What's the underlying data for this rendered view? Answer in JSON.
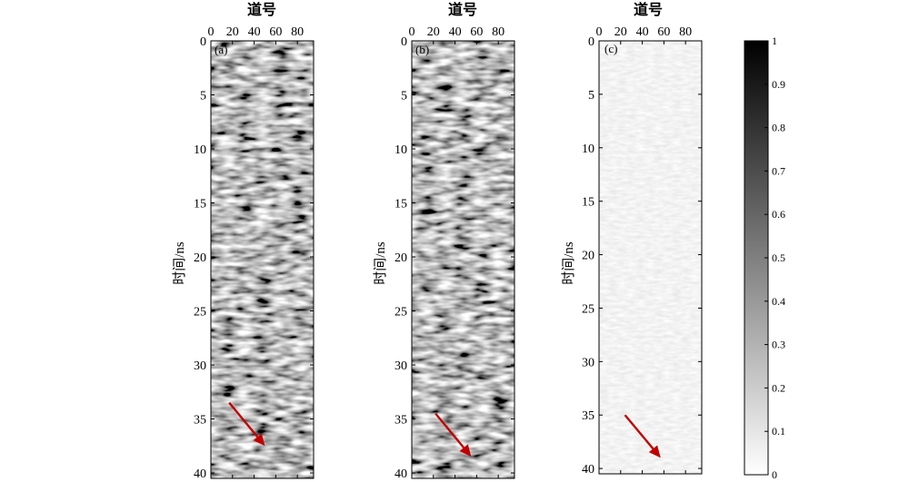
{
  "chart_data": [
    {
      "type": "heatmap",
      "panel_label": "(a)",
      "xlabel": "道号",
      "ylabel": "时间/ns",
      "xlim": [
        0,
        95
      ],
      "ylim": [
        0,
        40.5
      ],
      "x_ticks": [
        0,
        20,
        40,
        60,
        80
      ],
      "y_ticks": [
        0,
        5,
        10,
        15,
        20,
        25,
        30,
        35,
        40
      ],
      "arrow": {
        "from": [
          17,
          33.5
        ],
        "to": [
          50,
          37.5
        ],
        "color": "#c00000"
      }
    },
    {
      "type": "heatmap",
      "panel_label": "(b)",
      "xlabel": "道号",
      "ylabel": "时间/ns",
      "xlim": [
        0,
        95
      ],
      "ylim": [
        0,
        40.5
      ],
      "x_ticks": [
        0,
        20,
        40,
        60,
        80
      ],
      "y_ticks": [
        0,
        5,
        10,
        15,
        20,
        25,
        30,
        35,
        40
      ],
      "arrow": {
        "from": [
          22,
          34.5
        ],
        "to": [
          55,
          38.5
        ],
        "color": "#c00000"
      }
    },
    {
      "type": "heatmap",
      "panel_label": "(c)",
      "xlabel": "道号",
      "ylabel": "时间/ns",
      "xlim": [
        0,
        95
      ],
      "ylim": [
        0,
        40.5
      ],
      "x_ticks": [
        0,
        20,
        40,
        60,
        80
      ],
      "y_ticks": [
        0,
        5,
        10,
        15,
        20,
        25,
        30,
        35,
        40
      ],
      "arrow": {
        "from": [
          24,
          35
        ],
        "to": [
          57,
          39
        ],
        "color": "#c00000"
      }
    }
  ],
  "colorbar": {
    "min": 0,
    "max": 1,
    "ticks": [
      "0",
      "0.1",
      "0.2",
      "0.3",
      "0.4",
      "0.5",
      "0.6",
      "0.7",
      "0.8",
      "0.9",
      "1"
    ]
  }
}
